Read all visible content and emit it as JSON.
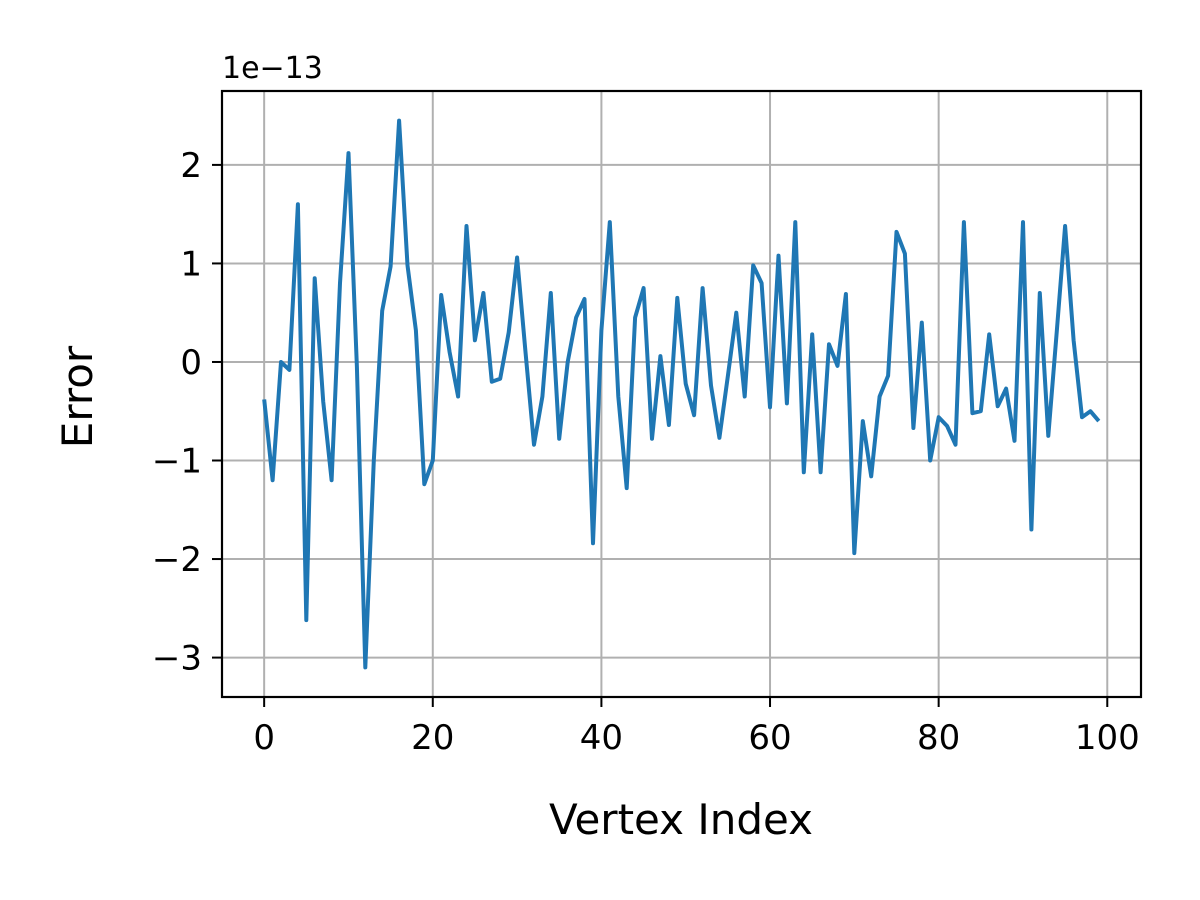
{
  "chart_data": {
    "type": "line",
    "title": "",
    "xlabel": "Vertex Index",
    "ylabel": "Error",
    "y_offset_text": "1e−13",
    "xlim": [
      -5,
      104
    ],
    "ylim": [
      -3.4,
      2.75
    ],
    "xticks": [
      0,
      20,
      40,
      60,
      80,
      100
    ],
    "xtick_labels": [
      "0",
      "20",
      "40",
      "60",
      "80",
      "100"
    ],
    "yticks": [
      -3,
      -2,
      -1,
      0,
      1,
      2
    ],
    "ytick_labels": [
      "−3",
      "−2",
      "−1",
      "0",
      "1",
      "2"
    ],
    "grid": true,
    "legend": "none",
    "series": [
      {
        "color": "#1f77b4",
        "x": [
          0,
          1,
          2,
          3,
          4,
          5,
          6,
          7,
          8,
          9,
          10,
          11,
          12,
          13,
          14,
          15,
          16,
          17,
          18,
          19,
          20,
          21,
          22,
          23,
          24,
          25,
          26,
          27,
          28,
          29,
          30,
          31,
          32,
          33,
          34,
          35,
          36,
          37,
          38,
          39,
          40,
          41,
          42,
          43,
          44,
          45,
          46,
          47,
          48,
          49,
          50,
          51,
          52,
          53,
          54,
          55,
          56,
          57,
          58,
          59,
          60,
          61,
          62,
          63,
          64,
          65,
          66,
          67,
          68,
          69,
          70,
          71,
          72,
          73,
          74,
          75,
          76,
          77,
          78,
          79,
          80,
          81,
          82,
          83,
          84,
          85,
          86,
          87,
          88,
          89,
          90,
          91,
          92,
          93,
          94,
          95,
          96,
          97,
          98,
          99
        ],
        "y": [
          -0.38,
          -1.2,
          0.0,
          -0.08,
          1.6,
          -2.62,
          0.85,
          -0.4,
          -1.2,
          0.8,
          2.12,
          -0.05,
          -3.1,
          -1.0,
          0.52,
          0.97,
          2.45,
          0.98,
          0.32,
          -1.24,
          -1.0,
          0.68,
          0.1,
          -0.35,
          1.38,
          0.22,
          0.7,
          -0.2,
          -0.17,
          0.3,
          1.06,
          0.1,
          -0.84,
          -0.35,
          0.7,
          -0.78,
          0.0,
          0.45,
          0.64,
          -1.84,
          0.32,
          1.42,
          -0.35,
          -1.28,
          0.45,
          0.75,
          -0.78,
          0.06,
          -0.64,
          0.65,
          -0.22,
          -0.54,
          0.75,
          -0.24,
          -0.77,
          -0.14,
          0.5,
          -0.35,
          0.98,
          0.8,
          -0.46,
          1.08,
          -0.42,
          1.42,
          -1.12,
          0.28,
          -1.12,
          0.18,
          -0.04,
          0.69,
          -1.94,
          -0.6,
          -1.16,
          -0.35,
          -0.14,
          1.32,
          1.1,
          -0.67,
          0.4,
          -1.0,
          -0.56,
          -0.65,
          -0.84,
          1.42,
          -0.52,
          -0.5,
          0.28,
          -0.45,
          -0.27,
          -0.8,
          1.42,
          -1.7,
          0.7,
          -0.75,
          0.3,
          1.38,
          0.22,
          -0.56,
          -0.5,
          -0.6
        ]
      }
    ]
  }
}
